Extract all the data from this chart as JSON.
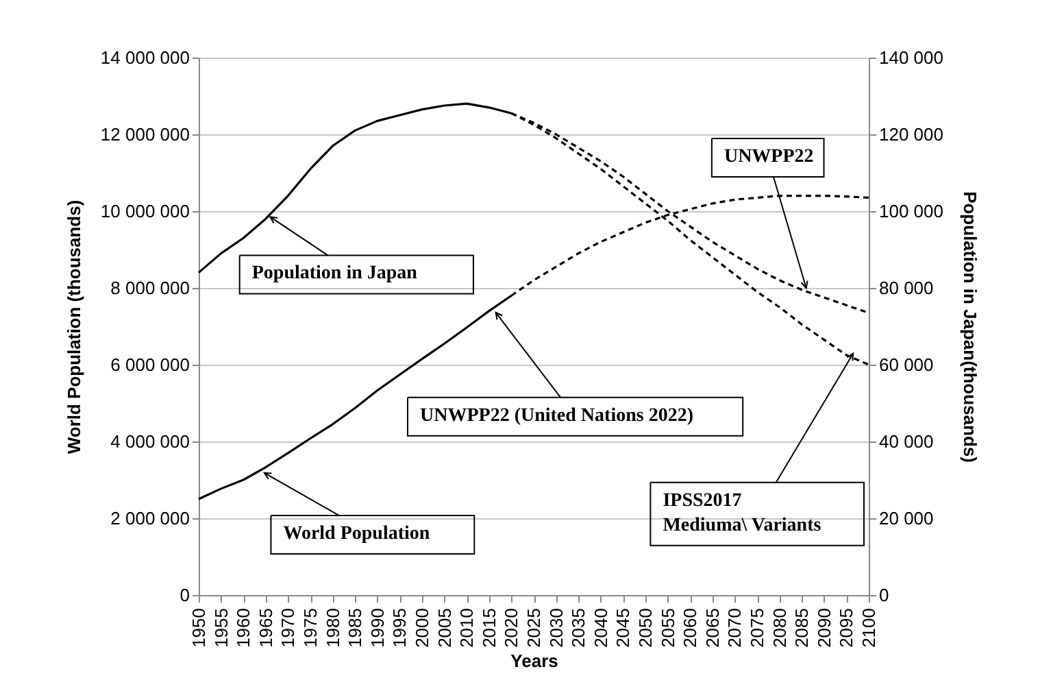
{
  "chart_data": {
    "type": "line",
    "xlabel": "Years",
    "ylabel": "World Population (thousands)",
    "y2label": "Population in Japan(thousands)",
    "xlim": [
      1950,
      2100
    ],
    "xticks": [
      1950,
      1955,
      1960,
      1965,
      1970,
      1975,
      1980,
      1985,
      1990,
      1995,
      2000,
      2005,
      2010,
      2015,
      2020,
      2025,
      2030,
      2035,
      2040,
      2045,
      2050,
      2055,
      2060,
      2065,
      2070,
      2075,
      2080,
      2085,
      2090,
      2095,
      2100
    ],
    "ylim": [
      0,
      14000000
    ],
    "yticks": [
      {
        "value": 0,
        "label": "0"
      },
      {
        "value": 2000000,
        "label": "2 000 000"
      },
      {
        "value": 4000000,
        "label": "4 000 000"
      },
      {
        "value": 6000000,
        "label": "6 000 000"
      },
      {
        "value": 8000000,
        "label": "8 000 000"
      },
      {
        "value": 10000000,
        "label": "10 000 000"
      },
      {
        "value": 12000000,
        "label": "12 000 000"
      },
      {
        "value": 14000000,
        "label": "14 000 000"
      }
    ],
    "y2lim": [
      0,
      140000
    ],
    "y2ticks": [
      {
        "value": 0,
        "label": "0"
      },
      {
        "value": 20000,
        "label": "20 000"
      },
      {
        "value": 40000,
        "label": "40 000"
      },
      {
        "value": 60000,
        "label": "60 000"
      },
      {
        "value": 80000,
        "label": "80 000"
      },
      {
        "value": 100000,
        "label": "100 000"
      },
      {
        "value": 120000,
        "label": "120 000"
      },
      {
        "value": 140000,
        "label": "140 000"
      }
    ],
    "grid": "y",
    "legend": false,
    "series": [
      {
        "color": "#000000",
        "line_style": "solid",
        "x": [
          1950,
          1955,
          1960,
          1965,
          1970,
          1975,
          1980,
          1985,
          1990,
          1995,
          2000,
          2005,
          2010,
          2015,
          2020
        ],
        "values": [
          2500000,
          2770000,
          3000000,
          3330000,
          3700000,
          4080000,
          4450000,
          4870000,
          5330000,
          5740000,
          6150000,
          6550000,
          6970000,
          7400000,
          7800000
        ]
      },
      {
        "color": "#000000",
        "line_style": "dashed",
        "x": [
          2020,
          2025,
          2030,
          2035,
          2040,
          2045,
          2050,
          2055,
          2060,
          2065,
          2070,
          2075,
          2080,
          2085,
          2090,
          2095,
          2100
        ],
        "values": [
          7800000,
          8200000,
          8550000,
          8900000,
          9200000,
          9450000,
          9700000,
          9900000,
          10050000,
          10200000,
          10300000,
          10350000,
          10400000,
          10400000,
          10400000,
          10380000,
          10350000
        ]
      },
      {
        "color": "#000000",
        "line_style": "solid",
        "axis": "y2",
        "x": [
          1950,
          1955,
          1960,
          1965,
          1970,
          1975,
          1980,
          1985,
          1990,
          1995,
          2000,
          2005,
          2010,
          2015,
          2020
        ],
        "values": [
          84000,
          89000,
          93000,
          98000,
          104000,
          111000,
          117000,
          121000,
          123500,
          125000,
          126500,
          127500,
          128000,
          127000,
          125500
        ]
      },
      {
        "color": "#000000",
        "line_style": "dashed",
        "axis": "y2",
        "x": [
          2020,
          2025,
          2030,
          2035,
          2040,
          2045,
          2050,
          2055,
          2060,
          2065,
          2070,
          2075,
          2080,
          2085,
          2090,
          2095,
          2100
        ],
        "values": [
          125500,
          123000,
          120000,
          116500,
          113000,
          109000,
          104500,
          100000,
          96000,
          92000,
          88500,
          85000,
          82000,
          79500,
          77500,
          75500,
          73500
        ]
      },
      {
        "color": "#000000",
        "line_style": "dashed",
        "axis": "y2",
        "x": [
          2020,
          2025,
          2030,
          2035,
          2040,
          2045,
          2050,
          2055,
          2060,
          2065,
          2070,
          2075,
          2080,
          2085,
          2090,
          2095,
          2100
        ],
        "values": [
          125500,
          122500,
          119000,
          115000,
          111000,
          106500,
          102000,
          97500,
          92500,
          88000,
          83500,
          79000,
          75000,
          70500,
          66500,
          62500,
          60000
        ]
      }
    ],
    "annotations": [
      {
        "text": "Population in Japan",
        "x": 1966,
        "y": 9850000
      },
      {
        "text": "UNWPP22",
        "x": 2086,
        "y": 8000000
      },
      {
        "text": "UNWPP22 (United Nations 2022)",
        "x": 2016.5,
        "y": 7360000
      },
      {
        "text": "World Population",
        "x": 1964.7,
        "y": 3180000
      },
      {
        "text": "IPSS2017\nMediuma\\ Variants",
        "x": 2096.5,
        "y": 6290000
      }
    ]
  }
}
